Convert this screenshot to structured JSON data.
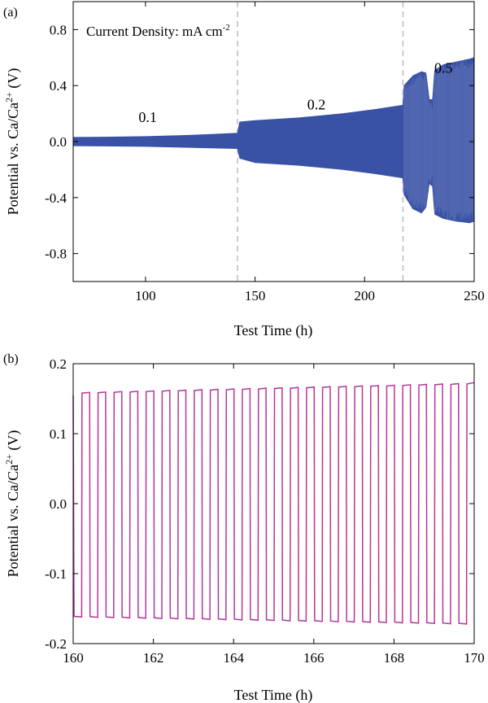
{
  "panels": [
    {
      "panel_label": "(a)",
      "annotation": "Current Density: mA cm",
      "annotation_exp": "-2",
      "color": "#3A52A6",
      "dash_color": "#bdbdbd"
    },
    {
      "panel_label": "(b)",
      "color": "#B5359B"
    }
  ],
  "chart_data": [
    {
      "type": "line",
      "title": "",
      "xlabel": "Test Time (h)",
      "ylabel": "Potential vs. Ca/Ca",
      "ylabel_sup": "2+",
      "ylabel_tail": " (V)",
      "xlim": [
        67,
        250
      ],
      "ylim": [
        -1.0,
        1.0
      ],
      "xticks": [
        100,
        150,
        200,
        250
      ],
      "xtick_labels": [
        "100",
        "150",
        "200",
        "250"
      ],
      "yticks": [
        -0.8,
        -0.4,
        0.0,
        0.4,
        0.8
      ],
      "ytick_labels": [
        "-0.8",
        "-0.4",
        "0.0",
        "0.4",
        "0.8"
      ],
      "grid": false,
      "vlines": [
        142,
        217.5
      ],
      "segment_labels": [
        {
          "text": "0.1",
          "x": 101,
          "y": 0.14
        },
        {
          "text": "0.2",
          "x": 178,
          "y": 0.23
        },
        {
          "text": "0.5",
          "x": 236,
          "y": 0.49
        }
      ],
      "series": [
        {
          "upper": [
            {
              "x": 67,
              "y": 0.03
            },
            {
              "x": 80,
              "y": 0.032
            },
            {
              "x": 100,
              "y": 0.036
            },
            {
              "x": 120,
              "y": 0.045
            },
            {
              "x": 142,
              "y": 0.06
            },
            {
              "x": 143,
              "y": 0.14
            },
            {
              "x": 150,
              "y": 0.15
            },
            {
              "x": 170,
              "y": 0.17
            },
            {
              "x": 190,
              "y": 0.2
            },
            {
              "x": 205,
              "y": 0.23
            },
            {
              "x": 217.5,
              "y": 0.26
            },
            {
              "x": 218,
              "y": 0.4
            },
            {
              "x": 222,
              "y": 0.47
            },
            {
              "x": 226,
              "y": 0.5
            },
            {
              "x": 228,
              "y": 0.49
            },
            {
              "x": 229.5,
              "y": 0.3
            },
            {
              "x": 231,
              "y": 0.3
            },
            {
              "x": 232,
              "y": 0.51
            },
            {
              "x": 236,
              "y": 0.55
            },
            {
              "x": 242,
              "y": 0.57
            },
            {
              "x": 248,
              "y": 0.59
            },
            {
              "x": 250,
              "y": 0.6
            }
          ],
          "lower": [
            {
              "x": 67,
              "y": -0.03
            },
            {
              "x": 80,
              "y": -0.032
            },
            {
              "x": 100,
              "y": -0.035
            },
            {
              "x": 120,
              "y": -0.042
            },
            {
              "x": 142,
              "y": -0.05
            },
            {
              "x": 143,
              "y": -0.12
            },
            {
              "x": 150,
              "y": -0.15
            },
            {
              "x": 170,
              "y": -0.17
            },
            {
              "x": 190,
              "y": -0.2
            },
            {
              "x": 205,
              "y": -0.23
            },
            {
              "x": 217.5,
              "y": -0.26
            },
            {
              "x": 218,
              "y": -0.38
            },
            {
              "x": 222,
              "y": -0.48
            },
            {
              "x": 226,
              "y": -0.51
            },
            {
              "x": 228,
              "y": -0.47
            },
            {
              "x": 229.5,
              "y": -0.3
            },
            {
              "x": 231,
              "y": -0.32
            },
            {
              "x": 232,
              "y": -0.52
            },
            {
              "x": 236,
              "y": -0.55
            },
            {
              "x": 242,
              "y": -0.57
            },
            {
              "x": 248,
              "y": -0.58
            },
            {
              "x": 250,
              "y": -0.57
            }
          ]
        }
      ]
    },
    {
      "type": "line",
      "title": "",
      "xlabel": "Test Time (h)",
      "ylabel": "Potential vs. Ca/Ca",
      "ylabel_sup": "2+",
      "ylabel_tail": " (V)",
      "xlim": [
        160,
        170
      ],
      "ylim": [
        -0.2,
        0.2
      ],
      "xticks": [
        160,
        162,
        164,
        166,
        168,
        170
      ],
      "xtick_labels": [
        "160",
        "162",
        "164",
        "166",
        "168",
        "170"
      ],
      "yticks": [
        -0.2,
        -0.1,
        0.0,
        0.1,
        0.2
      ],
      "ytick_labels": [
        "-0.2",
        "-0.1",
        "0.0",
        "0.1",
        "0.2"
      ],
      "grid": false,
      "series": [
        {
          "cycle_period_h": 0.4,
          "cycle_start_h": 160.0,
          "cycle_count": 25,
          "upper_start": 0.158,
          "upper_end": 0.171,
          "lower_start": -0.161,
          "lower_end": -0.171,
          "initial_upper": 0.155,
          "final_upper": 0.173
        }
      ]
    }
  ]
}
